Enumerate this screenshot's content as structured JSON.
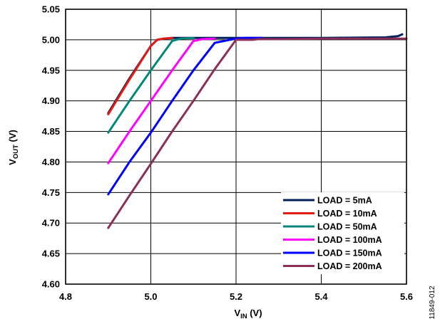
{
  "chart_data": {
    "type": "line",
    "xlabel_main": "V",
    "xlabel_sub": "IN",
    "xlabel_unit": " (V)",
    "ylabel_main": "V",
    "ylabel_sub": "OUT",
    "ylabel_unit": " (V)",
    "xlim": [
      4.8,
      5.6
    ],
    "ylim": [
      4.6,
      5.05
    ],
    "xticks": [
      4.8,
      5.0,
      5.2,
      5.4,
      5.6
    ],
    "xtick_labels": [
      "4.8",
      "5.0",
      "5.2",
      "5.4",
      "5.6"
    ],
    "yticks": [
      4.6,
      4.65,
      4.7,
      4.75,
      4.8,
      4.85,
      4.9,
      4.95,
      5.0,
      5.05
    ],
    "ytick_labels": [
      "4.60",
      "4.65",
      "4.70",
      "4.75",
      "4.80",
      "4.85",
      "4.90",
      "4.95",
      "5.00",
      "5.05"
    ],
    "grid": true,
    "legend_position": "bottom-right",
    "figure_id": "11849-012",
    "series": [
      {
        "name": "LOAD = 5mA",
        "color": "#00205b",
        "x": [
          4.9,
          4.95,
          5.0,
          5.015,
          5.03,
          5.05,
          5.2,
          5.4,
          5.55,
          5.58,
          5.59
        ],
        "y": [
          4.88,
          4.937,
          4.99,
          5.0,
          5.002,
          5.003,
          5.003,
          5.003,
          5.004,
          5.006,
          5.009
        ]
      },
      {
        "name": "LOAD = 10mA",
        "color": "#e41b13",
        "x": [
          4.9,
          4.95,
          5.0,
          5.015,
          5.03,
          5.05
        ],
        "y": [
          4.878,
          4.935,
          4.99,
          5.0,
          5.002,
          5.003
        ]
      },
      {
        "name": "LOAD = 50mA",
        "color": "#00877a",
        "x": [
          4.9,
          4.95,
          5.0,
          5.05,
          5.07,
          5.1
        ],
        "y": [
          4.848,
          4.9,
          4.95,
          4.998,
          5.002,
          5.003
        ]
      },
      {
        "name": "LOAD = 100mA",
        "color": "#ff00ff",
        "x": [
          4.9,
          4.95,
          5.0,
          5.05,
          5.1,
          5.12,
          5.15
        ],
        "y": [
          4.798,
          4.85,
          4.9,
          4.95,
          4.998,
          5.001,
          5.002
        ]
      },
      {
        "name": "LOAD = 150mA",
        "color": "#0000ff",
        "x": [
          4.9,
          4.95,
          5.0,
          5.05,
          5.1,
          5.15,
          5.2,
          5.22,
          5.26
        ],
        "y": [
          4.747,
          4.8,
          4.848,
          4.9,
          4.95,
          4.995,
          5.002,
          5.003,
          5.003
        ]
      },
      {
        "name": "LOAD = 200mA",
        "color": "#8b2e5a",
        "x": [
          4.9,
          4.95,
          5.0,
          5.05,
          5.1,
          5.15,
          5.2,
          5.24,
          5.25,
          5.3,
          5.4,
          5.6
        ],
        "y": [
          4.692,
          4.745,
          4.797,
          4.85,
          4.9,
          4.952,
          5.0,
          5.0,
          5.001,
          5.001,
          5.002,
          5.002
        ]
      }
    ]
  }
}
